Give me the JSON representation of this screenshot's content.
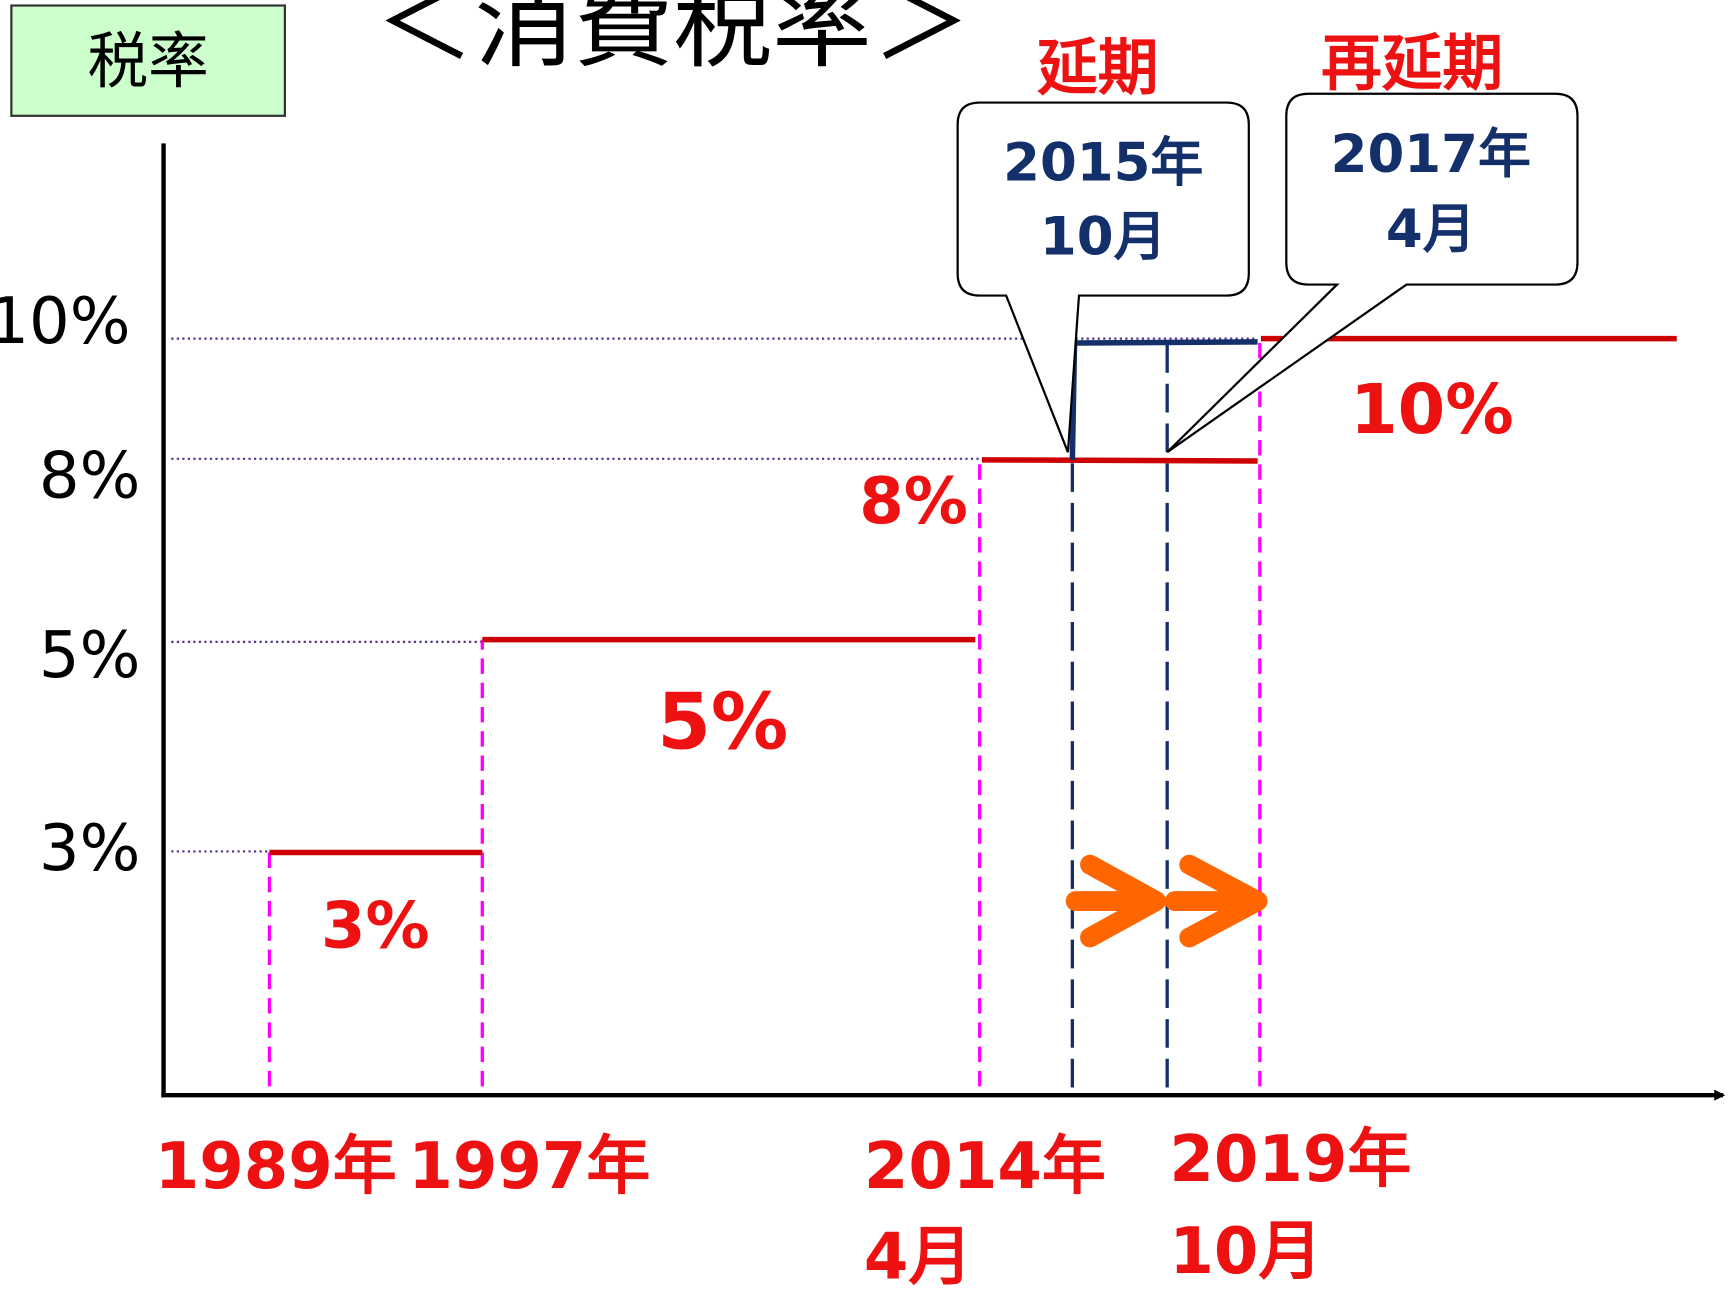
{
  "badge": "税率",
  "title": "＜消費税率＞",
  "y_labels": [
    "10%",
    "8%",
    "5%",
    "3%"
  ],
  "rate_labels": [
    "3%",
    "5%",
    "8%",
    "10%"
  ],
  "x_labels": [
    [
      "1989年"
    ],
    [
      "1997年"
    ],
    [
      "2014年",
      "4月"
    ],
    [
      "2019年",
      "10月"
    ]
  ],
  "delays": [
    {
      "heading": "延期",
      "callout": [
        "2015年",
        "10月"
      ]
    },
    {
      "heading": "再延期",
      "callout": [
        "2017年",
        "4月"
      ]
    }
  ]
}
